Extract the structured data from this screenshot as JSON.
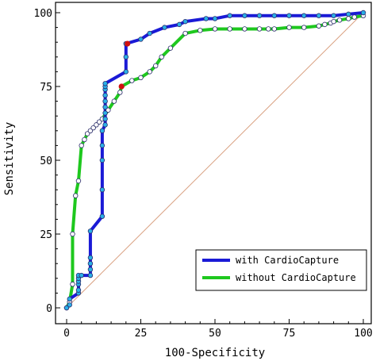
{
  "chart_data": {
    "type": "line",
    "title": "",
    "xlabel": "100-Specificity",
    "ylabel": "Sensitivity",
    "xlim": [
      0,
      100
    ],
    "ylim": [
      0,
      100
    ],
    "xticks": [
      "0",
      "25",
      "50",
      "75",
      "100"
    ],
    "yticks": [
      "0",
      "25",
      "50",
      "75",
      "100"
    ],
    "grid": false,
    "legend_position": "bottom-right",
    "reference_line": {
      "x": [
        0,
        100
      ],
      "y": [
        0,
        100
      ],
      "color": "#d9a080"
    },
    "series": [
      {
        "name": "with CardioCapture",
        "color": "#1a1ad6",
        "marker_color": "#2ab0e8",
        "highlight": {
          "x": 20.5,
          "y": 89.5,
          "color": "#d01010"
        },
        "x": [
          0,
          1,
          1,
          4,
          4,
          4,
          4,
          4,
          4,
          5,
          8,
          8,
          8,
          8,
          8,
          12,
          12,
          12,
          12,
          12,
          13,
          13,
          13,
          13,
          13,
          13,
          13,
          13,
          13,
          20,
          20,
          20,
          25,
          28,
          33,
          38,
          40,
          47,
          50,
          55,
          60,
          65,
          70,
          75,
          80,
          85,
          90,
          95,
          100
        ],
        "y": [
          0,
          1,
          3,
          5,
          6,
          8,
          9,
          10,
          11,
          11,
          11,
          13,
          15,
          17,
          26,
          31,
          40,
          50,
          55,
          60,
          62,
          64,
          66,
          68,
          70,
          72,
          74,
          75,
          76,
          80,
          85,
          89.5,
          91,
          93,
          95,
          96,
          97,
          98,
          98,
          99,
          99,
          99,
          99,
          99,
          99,
          99,
          99,
          99.5,
          100
        ]
      },
      {
        "name": "without CardioCapture",
        "color": "#1ec81e",
        "marker_color": "#ffffff",
        "highlight": {
          "x": 18.5,
          "y": 75,
          "color": "#d01010"
        },
        "x": [
          0,
          1,
          2,
          2,
          3,
          4,
          5,
          6,
          7,
          8,
          9,
          10,
          11,
          12,
          14,
          16,
          18,
          18.5,
          22,
          25,
          28,
          30,
          32,
          35,
          40,
          45,
          50,
          55,
          60,
          65,
          68,
          70,
          75,
          80,
          85,
          87,
          89,
          90,
          92,
          95,
          97,
          100
        ],
        "y": [
          0,
          2,
          8,
          25,
          38,
          43,
          55,
          57,
          59,
          60,
          61,
          62,
          63,
          64,
          67,
          70,
          73,
          75,
          77,
          78,
          80,
          82,
          85,
          88,
          93,
          94,
          94.5,
          94.5,
          94.5,
          94.5,
          94.5,
          94.5,
          95,
          95,
          95.5,
          96,
          96.5,
          97,
          97.5,
          98,
          98.5,
          99
        ]
      }
    ]
  }
}
